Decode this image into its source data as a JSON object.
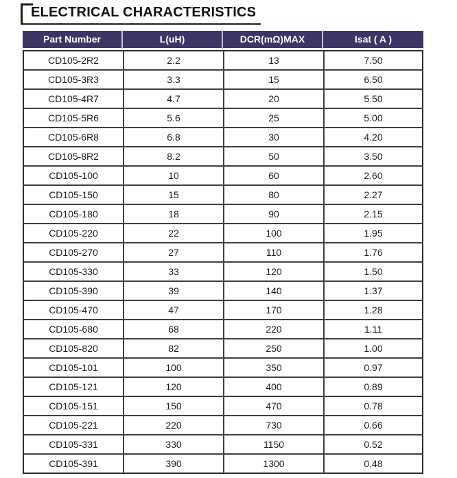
{
  "title": "ELECTRICAL CHARACTERISTICS",
  "colors": {
    "header_bg": "#3e3566",
    "header_text": "#ffffff",
    "grid_line": "#3f3f3f",
    "title_color": "#111111"
  },
  "table": {
    "headers": [
      "Part Number",
      "L(uH)",
      "DCR(mΩ)MAX",
      "Isat ( A )"
    ],
    "rows": [
      [
        "CD105-2R2",
        "2.2",
        "13",
        "7.50"
      ],
      [
        "CD105-3R3",
        "3.3",
        "15",
        "6.50"
      ],
      [
        "CD105-4R7",
        "4.7",
        "20",
        "5.50"
      ],
      [
        "CD105-5R6",
        "5.6",
        "25",
        "5.00"
      ],
      [
        "CD105-6R8",
        "6.8",
        "30",
        "4.20"
      ],
      [
        "CD105-8R2",
        "8.2",
        "50",
        "3.50"
      ],
      [
        "CD105-100",
        "10",
        "60",
        "2.60"
      ],
      [
        "CD105-150",
        "15",
        "80",
        "2.27"
      ],
      [
        "CD105-180",
        "18",
        "90",
        "2.15"
      ],
      [
        "CD105-220",
        "22",
        "100",
        "1.95"
      ],
      [
        "CD105-270",
        "27",
        "110",
        "1.76"
      ],
      [
        "CD105-330",
        "33",
        "120",
        "1.50"
      ],
      [
        "CD105-390",
        "39",
        "140",
        "1.37"
      ],
      [
        "CD105-470",
        "47",
        "170",
        "1.28"
      ],
      [
        "CD105-680",
        "68",
        "220",
        "1.11"
      ],
      [
        "CD105-820",
        "82",
        "250",
        "1.00"
      ],
      [
        "CD105-101",
        "100",
        "350",
        "0.97"
      ],
      [
        "CD105-121",
        "120",
        "400",
        "0.89"
      ],
      [
        "CD105-151",
        "150",
        "470",
        "0.78"
      ],
      [
        "CD105-221",
        "220",
        "730",
        "0.66"
      ],
      [
        "CD105-331",
        "330",
        "1150",
        "0.52"
      ],
      [
        "CD105-391",
        "390",
        "1300",
        "0.48"
      ]
    ]
  }
}
